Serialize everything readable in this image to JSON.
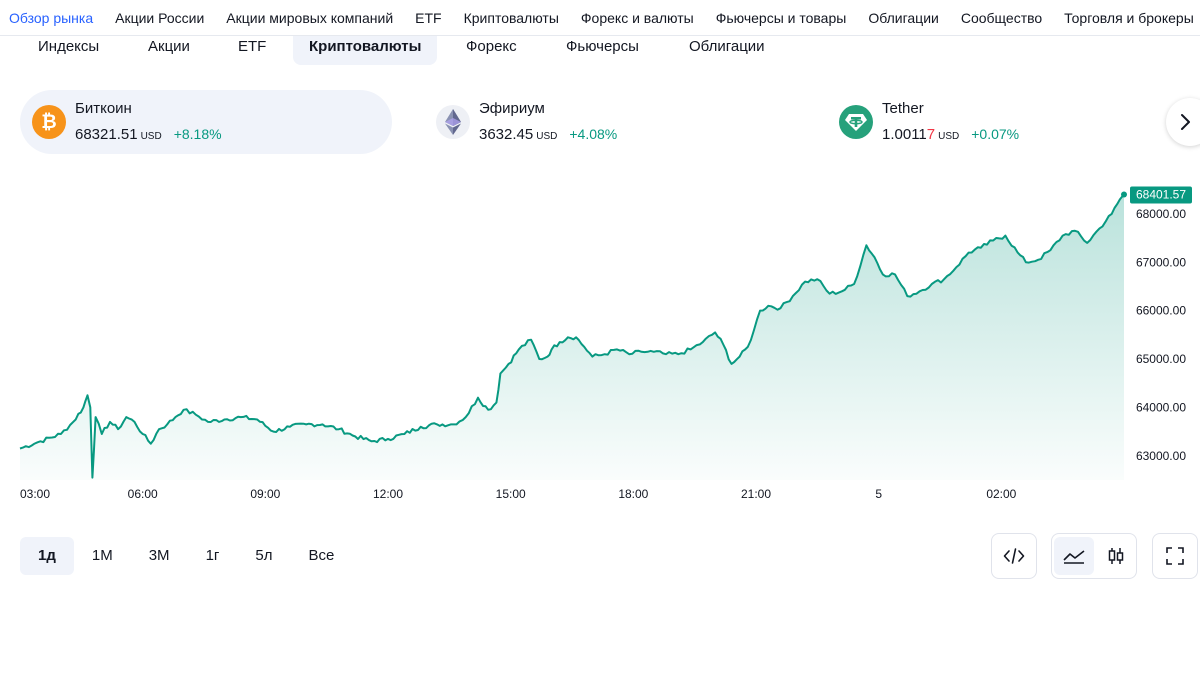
{
  "topnav": [
    {
      "label": "Обзор рынка",
      "active": true
    },
    {
      "label": "Акции России"
    },
    {
      "label": "Акции мировых компаний"
    },
    {
      "label": "ETF"
    },
    {
      "label": "Криптовалюты"
    },
    {
      "label": "Форекс и валюты"
    },
    {
      "label": "Фьючерсы и товары"
    },
    {
      "label": "Облигации"
    },
    {
      "label": "Сообщество"
    },
    {
      "label": "Торговля и брокеры"
    }
  ],
  "subtabs": [
    {
      "label": "Индексы"
    },
    {
      "label": "Акции"
    },
    {
      "label": "ETF"
    },
    {
      "label": "Криптовалюты",
      "active": true
    },
    {
      "label": "Форекс"
    },
    {
      "label": "Фьючерсы"
    },
    {
      "label": "Облигации"
    }
  ],
  "tickers": [
    {
      "name": "Биткоин",
      "price": "68321.51",
      "price_tail": "",
      "currency": "USD",
      "change": "+8.18%",
      "icon": "bitcoin-icon",
      "color": "#f7931a",
      "active": true
    },
    {
      "name": "Эфириум",
      "price": "3632.45",
      "price_tail": "",
      "currency": "USD",
      "change": "+4.08%",
      "icon": "ethereum-icon",
      "color": "#627eea"
    },
    {
      "name": "Tether",
      "price": "1.0011",
      "price_tail": "7",
      "currency": "USD",
      "change": "+0.07%",
      "icon": "tether-icon",
      "color": "#26a17b"
    }
  ],
  "chart_data": {
    "type": "area",
    "series": [
      {
        "values": [
          [
            0,
            63150
          ],
          [
            0.5,
            63300
          ],
          [
            1,
            63450
          ],
          [
            1.3,
            63700
          ],
          [
            1.55,
            64000
          ],
          [
            1.65,
            64250
          ],
          [
            1.72,
            64000
          ],
          [
            1.77,
            62550
          ],
          [
            1.85,
            63800
          ],
          [
            2,
            63450
          ],
          [
            2.2,
            63700
          ],
          [
            2.4,
            63550
          ],
          [
            2.6,
            63800
          ],
          [
            2.8,
            63700
          ],
          [
            3,
            63450
          ],
          [
            3.2,
            63250
          ],
          [
            3.4,
            63550
          ],
          [
            3.6,
            63650
          ],
          [
            3.8,
            63800
          ],
          [
            4,
            63950
          ],
          [
            4.3,
            63850
          ],
          [
            4.6,
            63700
          ],
          [
            5,
            63750
          ],
          [
            5.4,
            63800
          ],
          [
            5.8,
            63750
          ],
          [
            6.2,
            63500
          ],
          [
            6.6,
            63600
          ],
          [
            7,
            63650
          ],
          [
            7.4,
            63650
          ],
          [
            7.8,
            63550
          ],
          [
            8.2,
            63400
          ],
          [
            8.6,
            63300
          ],
          [
            9,
            63350
          ],
          [
            9.4,
            63450
          ],
          [
            9.8,
            63600
          ],
          [
            10.2,
            63650
          ],
          [
            10.6,
            63650
          ],
          [
            10.9,
            63800
          ],
          [
            11.2,
            64200
          ],
          [
            11.45,
            63950
          ],
          [
            11.65,
            64100
          ],
          [
            11.75,
            64700
          ],
          [
            11.95,
            64900
          ],
          [
            12.2,
            65200
          ],
          [
            12.5,
            65400
          ],
          [
            12.7,
            65000
          ],
          [
            12.9,
            65050
          ],
          [
            13,
            65200
          ],
          [
            13.2,
            65350
          ],
          [
            13.4,
            65450
          ],
          [
            13.6,
            65450
          ],
          [
            13.8,
            65250
          ],
          [
            14,
            65050
          ],
          [
            14.3,
            65100
          ],
          [
            14.6,
            65200
          ],
          [
            14.9,
            65100
          ],
          [
            15.2,
            65150
          ],
          [
            15.5,
            65150
          ],
          [
            15.8,
            65100
          ],
          [
            16.1,
            65100
          ],
          [
            16.4,
            65200
          ],
          [
            16.7,
            65350
          ],
          [
            17,
            65550
          ],
          [
            17.2,
            65300
          ],
          [
            17.4,
            64900
          ],
          [
            17.6,
            65050
          ],
          [
            17.8,
            65250
          ],
          [
            17.95,
            65600
          ],
          [
            18.1,
            66000
          ],
          [
            18.3,
            66100
          ],
          [
            18.6,
            66050
          ],
          [
            18.9,
            66300
          ],
          [
            19.2,
            66600
          ],
          [
            19.5,
            66650
          ],
          [
            19.8,
            66350
          ],
          [
            20.1,
            66400
          ],
          [
            20.4,
            66550
          ],
          [
            20.7,
            67350
          ],
          [
            20.9,
            67100
          ],
          [
            21.1,
            66750
          ],
          [
            21.4,
            66750
          ],
          [
            21.7,
            66300
          ],
          [
            22,
            66400
          ],
          [
            22.3,
            66550
          ],
          [
            22.6,
            66650
          ],
          [
            22.9,
            66900
          ],
          [
            23.2,
            67200
          ],
          [
            23.5,
            67300
          ],
          [
            23.8,
            67450
          ],
          [
            24.1,
            67550
          ],
          [
            24.4,
            67200
          ],
          [
            24.6,
            67000
          ],
          [
            24.9,
            67050
          ],
          [
            25.2,
            67250
          ],
          [
            25.5,
            67550
          ],
          [
            25.8,
            67650
          ],
          [
            26.1,
            67400
          ],
          [
            26.4,
            67700
          ],
          [
            26.7,
            68000
          ],
          [
            26.9,
            68300
          ],
          [
            27,
            68400
          ]
        ]
      }
    ],
    "x_labels": [
      {
        "x": 0,
        "label": "03:00"
      },
      {
        "x": 3,
        "label": "06:00"
      },
      {
        "x": 6,
        "label": "09:00"
      },
      {
        "x": 9,
        "label": "12:00"
      },
      {
        "x": 12,
        "label": "15:00"
      },
      {
        "x": 15,
        "label": "18:00"
      },
      {
        "x": 18,
        "label": "21:00"
      },
      {
        "x": 21,
        "label": "5"
      },
      {
        "x": 24,
        "label": "02:00"
      }
    ],
    "y_ticks": [
      "63000.00",
      "64000.00",
      "65000.00",
      "66000.00",
      "67000.00",
      "68000.00"
    ],
    "y_tick_values": [
      63000,
      64000,
      65000,
      66000,
      67000,
      68000
    ],
    "last_price": {
      "value": 68401.57,
      "label": "68401.57"
    },
    "line_color": "#089981",
    "ylim": [
      62500,
      68700
    ],
    "grid": false
  },
  "ranges": [
    {
      "label": "1д",
      "active": true
    },
    {
      "label": "1М"
    },
    {
      "label": "3М"
    },
    {
      "label": "1г"
    },
    {
      "label": "5л"
    },
    {
      "label": "Все"
    }
  ],
  "tools": {
    "embed": "embed-code-icon",
    "area": "area-chart-icon",
    "candles": "candlestick-icon",
    "fullscreen": "fullscreen-icon"
  }
}
